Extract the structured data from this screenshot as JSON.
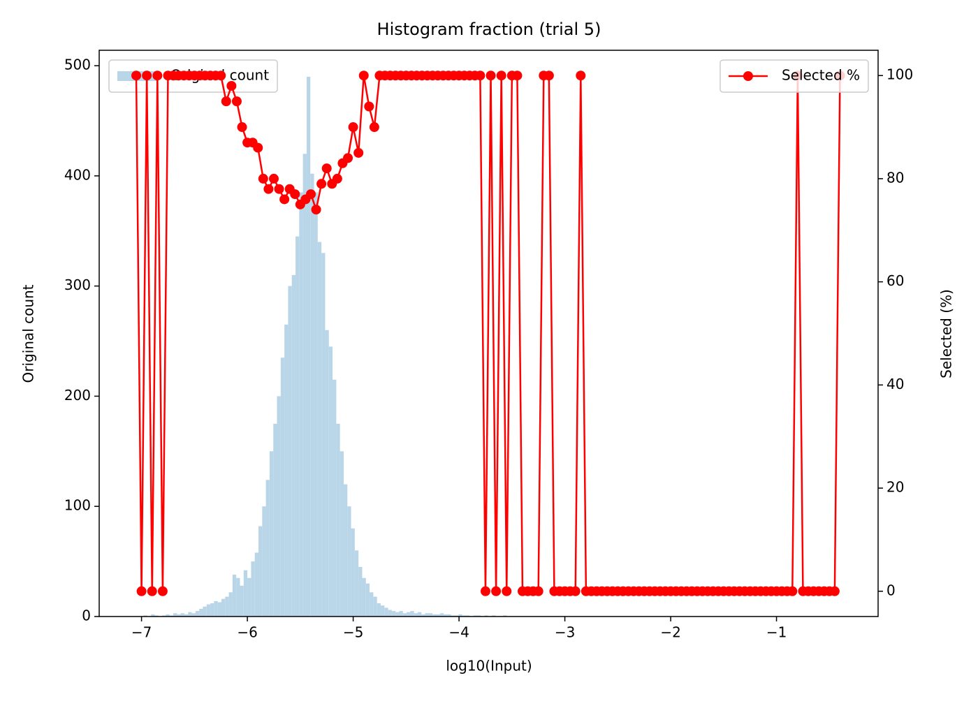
{
  "chart_data": {
    "type": "histogram",
    "title": "Histogram fraction (trial 5)",
    "x_label": "log10(Input)",
    "y_label": "Original count",
    "y2_label": "Selected (%)",
    "name": "Original count",
    "color": "#b9d5e8",
    "legend": "upper left",
    "bins": [
      -7.05,
      -7.015,
      -6.98,
      -6.945,
      -6.91,
      -6.875,
      -6.84,
      -6.805,
      -6.77,
      -6.735,
      -6.7,
      -6.665,
      -6.63,
      -6.595,
      -6.56,
      -6.525,
      -6.49,
      -6.455,
      -6.42,
      -6.385,
      -6.35,
      -6.315,
      -6.28,
      -6.245,
      -6.21,
      -6.175,
      -6.14,
      -6.105,
      -6.07,
      -6.035,
      -6.0,
      -5.965,
      -5.93,
      -5.895,
      -5.86,
      -5.825,
      -5.79,
      -5.755,
      -5.72,
      -5.685,
      -5.65,
      -5.615,
      -5.58,
      -5.545,
      -5.51,
      -5.475,
      -5.44,
      -5.405,
      -5.37,
      -5.335,
      -5.3,
      -5.265,
      -5.23,
      -5.195,
      -5.16,
      -5.125,
      -5.09,
      -5.055,
      -5.02,
      -4.985,
      -4.95,
      -4.915,
      -4.88,
      -4.845,
      -4.81,
      -4.775,
      -4.74,
      -4.705,
      -4.67,
      -4.635,
      -4.6,
      -4.565,
      -4.53,
      -4.495,
      -4.46,
      -4.425,
      -4.39,
      -4.355,
      -4.32,
      -4.285,
      -4.25,
      -4.215,
      -4.18,
      -4.145,
      -4.11,
      -4.075,
      -4.04,
      -4.005,
      -3.97,
      -3.935,
      -3.9,
      -3.865,
      -3.83,
      -3.795,
      -3.76,
      -3.725,
      -3.69,
      -3.655,
      -3.62,
      -3.585,
      -3.55
    ],
    "values": [
      0,
      0,
      1,
      0,
      2,
      1,
      0,
      1,
      2,
      1,
      3,
      2,
      3,
      2,
      4,
      3,
      5,
      7,
      9,
      11,
      12,
      14,
      13,
      16,
      18,
      22,
      38,
      35,
      28,
      42,
      35,
      50,
      58,
      82,
      100,
      124,
      150,
      175,
      200,
      235,
      265,
      300,
      310,
      345,
      385,
      420,
      490,
      402,
      385,
      340,
      330,
      260,
      245,
      215,
      175,
      150,
      120,
      100,
      80,
      60,
      45,
      35,
      30,
      22,
      18,
      12,
      10,
      8,
      6,
      5,
      4,
      5,
      3,
      4,
      5,
      3,
      4,
      2,
      3,
      3,
      2,
      2,
      3,
      2,
      2,
      1,
      1,
      2,
      1,
      1,
      0,
      1,
      1,
      0,
      1,
      0,
      1,
      0,
      0,
      1
    ],
    "xlim": [
      -7.4,
      -0.04
    ],
    "ylim": [
      0,
      514
    ],
    "y2lim": [
      -4.9,
      104.9
    ],
    "xticks": [
      {
        "value": -7,
        "label": "−7"
      },
      {
        "value": -6,
        "label": "−6"
      },
      {
        "value": -5,
        "label": "−5"
      },
      {
        "value": -4,
        "label": "−4"
      },
      {
        "value": -3,
        "label": "−3"
      },
      {
        "value": -2,
        "label": "−2"
      },
      {
        "value": -1,
        "label": "−1"
      }
    ],
    "yticks": [
      0,
      100,
      200,
      300,
      400,
      500
    ],
    "y2ticks": [
      0,
      20,
      40,
      60,
      80,
      100
    ],
    "series": [
      {
        "name": "Selected %",
        "type": "line",
        "axis": "y2",
        "color": "#ff0000",
        "legend": "upper right",
        "x": [
          -7.05,
          -7,
          -6.95,
          -6.9,
          -6.85,
          -6.8,
          -6.75,
          -6.7,
          -6.65,
          -6.6,
          -6.55,
          -6.5,
          -6.45,
          -6.4,
          -6.35,
          -6.3,
          -6.25,
          -6.2,
          -6.15,
          -6.1,
          -6.05,
          -6,
          -5.95,
          -5.9,
          -5.85,
          -5.8,
          -5.75,
          -5.7,
          -5.65,
          -5.6,
          -5.55,
          -5.5,
          -5.45,
          -5.4,
          -5.35,
          -5.3,
          -5.25,
          -5.2,
          -5.15,
          -5.1,
          -5.05,
          -5,
          -4.95,
          -4.9,
          -4.85,
          -4.8,
          -4.75,
          -4.7,
          -4.65,
          -4.6,
          -4.55,
          -4.5,
          -4.45,
          -4.4,
          -4.35,
          -4.3,
          -4.25,
          -4.2,
          -4.15,
          -4.1,
          -4.05,
          -4,
          -3.95,
          -3.9,
          -3.85,
          -3.8,
          -3.75,
          -3.7,
          -3.65,
          -3.6,
          -3.55,
          -3.5,
          -3.45,
          -3.4,
          -3.35,
          -3.3,
          -3.25,
          -3.2,
          -3.15,
          -3.1,
          -3.05,
          -3,
          -2.95,
          -2.9,
          -2.85,
          -2.8,
          -2.75,
          -2.7,
          -2.65,
          -2.6,
          -2.55,
          -2.5,
          -2.45,
          -2.4,
          -2.35,
          -2.3,
          -2.25,
          -2.2,
          -2.15,
          -2.1,
          -2.05,
          -2,
          -1.95,
          -1.9,
          -1.85,
          -1.8,
          -1.75,
          -1.7,
          -1.65,
          -1.6,
          -1.55,
          -1.5,
          -1.45,
          -1.4,
          -1.35,
          -1.3,
          -1.25,
          -1.2,
          -1.15,
          -1.1,
          -1.05,
          -1,
          -0.95,
          -0.9,
          -0.85,
          -0.8,
          -0.75,
          -0.7,
          -0.65,
          -0.6,
          -0.55,
          -0.5,
          -0.45,
          -0.4
        ],
        "values": [
          100,
          0,
          100,
          0,
          100,
          0,
          100,
          100,
          100,
          100,
          100,
          100,
          100,
          100,
          100,
          100,
          100,
          95,
          98,
          95,
          90,
          87,
          87,
          86,
          80,
          78,
          80,
          78,
          76,
          78,
          77,
          75,
          76,
          77,
          74,
          79,
          82,
          79,
          80,
          83,
          84,
          90,
          85,
          100,
          94,
          90,
          100,
          100,
          100,
          100,
          100,
          100,
          100,
          100,
          100,
          100,
          100,
          100,
          100,
          100,
          100,
          100,
          100,
          100,
          100,
          100,
          0,
          100,
          0,
          100,
          0,
          100,
          100,
          0,
          0,
          0,
          0,
          100,
          100,
          0,
          0,
          0,
          0,
          0,
          100,
          0,
          0,
          0,
          0,
          0,
          0,
          0,
          0,
          0,
          0,
          0,
          0,
          0,
          0,
          0,
          0,
          0,
          0,
          0,
          0,
          0,
          0,
          0,
          0,
          0,
          0,
          0,
          0,
          0,
          0,
          0,
          0,
          0,
          0,
          0,
          0,
          0,
          0,
          0,
          0,
          100,
          0,
          0,
          0,
          0,
          0,
          0,
          0,
          100
        ]
      }
    ]
  }
}
